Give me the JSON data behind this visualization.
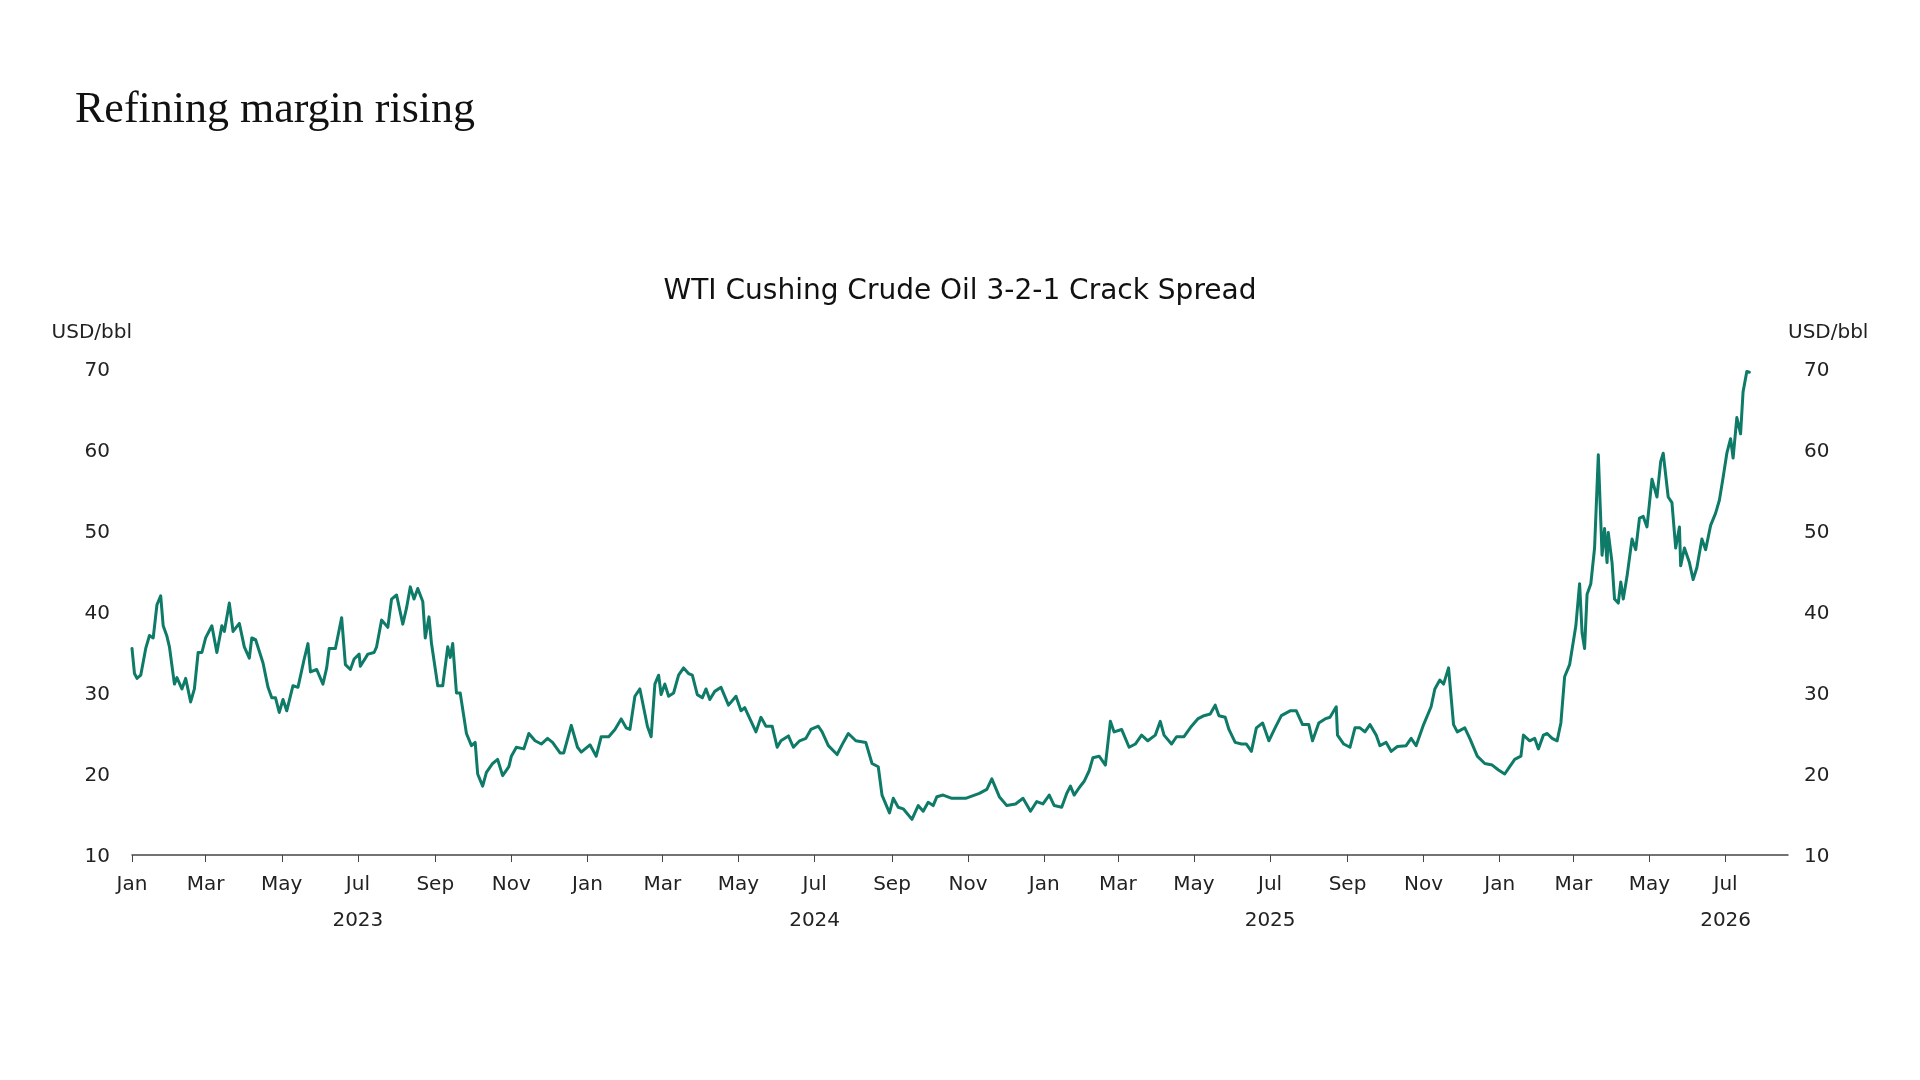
{
  "chart_data": {
    "type": "line",
    "title": "Refining margin rising",
    "subtitle": "WTI Cushing Crude Oil 3-2-1 Crack Spread",
    "ylabel": "USD/bbl",
    "y2label": "USD/bbl",
    "xlim": [
      "2023-01-01",
      "2026-08-20"
    ],
    "xticks": [
      {
        "value": "2023-01-01",
        "label": "Jan"
      },
      {
        "value": "2023-03-01",
        "label": "Mar"
      },
      {
        "value": "2023-05-01",
        "label": "May"
      },
      {
        "value": "2023-07-01",
        "label": "Jul\n2023"
      },
      {
        "value": "2023-09-01",
        "label": "Sep"
      },
      {
        "value": "2023-11-01",
        "label": "Nov"
      },
      {
        "value": "2024-01-01",
        "label": "Jan"
      },
      {
        "value": "2024-03-01",
        "label": "Mar"
      },
      {
        "value": "2024-05-01",
        "label": "May"
      },
      {
        "value": "2024-07-01",
        "label": "Jul\n2024"
      },
      {
        "value": "2024-09-01",
        "label": "Sep"
      },
      {
        "value": "2024-11-01",
        "label": "Nov"
      },
      {
        "value": "2025-01-01",
        "label": "Jan"
      },
      {
        "value": "2025-03-01",
        "label": "Mar"
      },
      {
        "value": "2025-05-01",
        "label": "May"
      },
      {
        "value": "2025-07-01",
        "label": "Jul\n2025"
      },
      {
        "value": "2025-09-01",
        "label": "Sep"
      },
      {
        "value": "2025-11-01",
        "label": "Nov"
      },
      {
        "value": "2026-01-01",
        "label": "Jan"
      },
      {
        "value": "2026-03-01",
        "label": "Mar"
      },
      {
        "value": "2026-05-01",
        "label": "May"
      },
      {
        "value": "2026-07-01",
        "label": "Jul\n2026"
      }
    ],
    "ylim": [
      10,
      70
    ],
    "yticks": [
      10,
      20,
      30,
      40,
      50,
      60,
      70
    ],
    "y2lim": [
      10,
      70
    ],
    "y2ticks": [
      10,
      20,
      30,
      40,
      50,
      60,
      70
    ],
    "grid": false,
    "marker": "none",
    "line_style": "solid",
    "x": [
      "2023-01-01",
      "2023-01-03",
      "2023-01-05",
      "2023-01-08",
      "2023-01-12",
      "2023-01-15",
      "2023-01-18",
      "2023-01-21",
      "2023-01-24",
      "2023-01-26",
      "2023-01-29",
      "2023-01-31",
      "2023-02-04",
      "2023-02-06",
      "2023-02-10",
      "2023-02-13",
      "2023-02-17",
      "2023-02-20",
      "2023-02-23",
      "2023-02-26",
      "2023-03-01",
      "2023-03-06",
      "2023-03-10",
      "2023-03-14",
      "2023-03-16",
      "2023-03-20",
      "2023-03-23",
      "2023-03-28",
      "2023-04-01",
      "2023-04-05",
      "2023-04-07",
      "2023-04-10",
      "2023-04-16",
      "2023-04-20",
      "2023-04-23",
      "2023-04-26",
      "2023-04-29",
      "2023-05-02",
      "2023-05-05",
      "2023-05-10",
      "2023-05-14",
      "2023-05-19",
      "2023-05-22",
      "2023-05-24",
      "2023-05-29",
      "2023-06-03",
      "2023-06-06",
      "2023-06-08",
      "2023-06-13",
      "2023-06-18",
      "2023-06-21",
      "2023-06-25",
      "2023-06-28",
      "2023-07-02",
      "2023-07-03",
      "2023-07-09",
      "2023-07-14",
      "2023-07-16",
      "2023-07-20",
      "2023-07-25",
      "2023-07-28",
      "2023-08-01",
      "2023-08-06",
      "2023-08-09",
      "2023-08-12",
      "2023-08-15",
      "2023-08-18",
      "2023-08-22",
      "2023-08-24",
      "2023-08-27",
      "2023-08-29",
      "2023-09-03",
      "2023-09-07",
      "2023-09-11",
      "2023-09-13",
      "2023-09-15",
      "2023-09-18",
      "2023-09-21",
      "2023-09-26",
      "2023-09-30",
      "2023-10-03",
      "2023-10-05",
      "2023-10-09",
      "2023-10-12",
      "2023-10-17",
      "2023-10-21",
      "2023-10-25",
      "2023-10-30",
      "2023-11-01",
      "2023-11-05",
      "2023-11-11",
      "2023-11-15",
      "2023-11-20",
      "2023-11-25",
      "2023-11-30",
      "2023-12-04",
      "2023-12-10",
      "2023-12-13",
      "2023-12-19",
      "2023-12-24",
      "2023-12-27",
      "2024-01-03",
      "2024-01-08",
      "2024-01-12",
      "2024-01-18",
      "2024-01-23",
      "2024-01-28",
      "2024-02-01",
      "2024-02-04",
      "2024-02-08",
      "2024-02-12",
      "2024-02-18",
      "2024-02-21",
      "2024-02-24",
      "2024-02-27",
      "2024-02-29",
      "2024-03-03",
      "2024-03-06",
      "2024-03-10",
      "2024-03-14",
      "2024-03-18",
      "2024-03-22",
      "2024-03-25",
      "2024-03-29",
      "2024-04-02",
      "2024-04-05",
      "2024-04-08",
      "2024-04-12",
      "2024-04-17",
      "2024-04-23",
      "2024-04-29",
      "2024-05-03",
      "2024-05-06",
      "2024-05-15",
      "2024-05-19",
      "2024-05-23",
      "2024-05-28",
      "2024-06-01",
      "2024-06-04",
      "2024-06-10",
      "2024-06-14",
      "2024-06-19",
      "2024-06-24",
      "2024-06-28",
      "2024-07-04",
      "2024-07-07",
      "2024-07-12",
      "2024-07-19",
      "2024-07-24",
      "2024-07-28",
      "2024-08-03",
      "2024-08-11",
      "2024-08-16",
      "2024-08-21",
      "2024-08-24",
      "2024-08-30",
      "2024-09-02",
      "2024-09-06",
      "2024-09-10",
      "2024-09-17",
      "2024-09-22",
      "2024-09-26",
      "2024-09-30",
      "2024-10-04",
      "2024-10-07",
      "2024-10-12",
      "2024-10-19",
      "2024-10-30",
      "2024-11-10",
      "2024-11-16",
      "2024-11-20",
      "2024-11-26",
      "2024-12-02",
      "2024-12-09",
      "2024-12-15",
      "2024-12-21",
      "2024-12-26",
      "2024-12-31",
      "2025-01-05",
      "2025-01-09",
      "2025-01-15",
      "2025-01-19",
      "2025-01-22",
      "2025-01-25",
      "2025-01-29",
      "2025-02-02",
      "2025-02-06",
      "2025-02-09",
      "2025-02-14",
      "2025-02-19",
      "2025-02-23",
      "2025-02-26",
      "2025-03-04",
      "2025-03-10",
      "2025-03-15",
      "2025-03-20",
      "2025-03-25",
      "2025-03-31",
      "2025-04-04",
      "2025-04-07",
      "2025-04-13",
      "2025-04-17",
      "2025-04-23",
      "2025-04-29",
      "2025-05-04",
      "2025-05-09",
      "2025-05-14",
      "2025-05-18",
      "2025-05-21",
      "2025-05-26",
      "2025-05-29",
      "2025-06-03",
      "2025-06-08",
      "2025-06-12",
      "2025-06-16",
      "2025-06-20",
      "2025-06-25",
      "2025-06-30",
      "2025-07-05",
      "2025-07-10",
      "2025-07-17",
      "2025-07-22",
      "2025-07-27",
      "2025-08-01",
      "2025-08-04",
      "2025-08-09",
      "2025-08-14",
      "2025-08-18",
      "2025-08-23",
      "2025-08-24",
      "2025-08-29",
      "2025-09-03",
      "2025-09-07",
      "2025-09-11",
      "2025-09-15",
      "2025-09-19",
      "2025-09-24",
      "2025-09-27",
      "2025-10-02",
      "2025-10-06",
      "2025-10-11",
      "2025-10-18",
      "2025-10-22",
      "2025-10-26",
      "2025-11-01",
      "2025-11-07",
      "2025-11-10",
      "2025-11-14",
      "2025-11-17",
      "2025-11-21",
      "2025-11-25",
      "2025-11-28",
      "2025-12-04",
      "2025-12-08",
      "2025-12-14",
      "2025-12-20",
      "2025-12-26",
      "2025-12-31",
      "2026-01-05",
      "2026-01-09",
      "2026-01-13",
      "2026-01-18",
      "2026-01-20",
      "2026-01-25",
      "2026-01-29",
      "2026-02-01",
      "2026-02-05",
      "2026-02-08",
      "2026-02-12",
      "2026-02-16",
      "2026-02-19",
      "2026-02-22",
      "2026-02-26",
      "2026-03-03",
      "2026-03-06",
      "2026-03-08",
      "2026-03-10",
      "2026-03-12",
      "2026-03-15",
      "2026-03-18",
      "2026-03-21",
      "2026-03-24",
      "2026-03-26",
      "2026-03-28",
      "2026-03-29",
      "2026-04-01",
      "2026-04-03",
      "2026-04-06",
      "2026-04-08",
      "2026-04-10",
      "2026-04-13",
      "2026-04-17",
      "2026-04-20",
      "2026-04-23",
      "2026-04-26",
      "2026-04-29",
      "2026-05-03",
      "2026-05-07",
      "2026-05-10",
      "2026-05-12",
      "2026-05-16",
      "2026-05-19",
      "2026-05-22",
      "2026-05-25",
      "2026-05-26",
      "2026-05-29",
      "2026-06-02",
      "2026-06-05",
      "2026-06-08",
      "2026-06-12",
      "2026-06-15",
      "2026-06-19",
      "2026-06-23",
      "2026-06-26",
      "2026-06-29",
      "2026-07-02",
      "2026-07-05",
      "2026-07-07",
      "2026-07-10",
      "2026-07-13",
      "2026-07-15",
      "2026-07-18",
      "2026-07-20"
    ],
    "series": [
      {
        "color": "#0e7a68",
        "values": [
          35.5,
          32.4,
          31.8,
          32.2,
          35.5,
          37.1,
          36.8,
          40.9,
          42.0,
          38.3,
          37.0,
          35.7,
          31.1,
          31.9,
          30.5,
          31.8,
          28.9,
          30.5,
          35.0,
          35.0,
          36.8,
          38.3,
          35.0,
          38.3,
          37.6,
          41.1,
          37.6,
          38.6,
          35.7,
          34.3,
          36.8,
          36.6,
          33.7,
          30.7,
          29.4,
          29.4,
          27.6,
          29.2,
          27.8,
          30.9,
          30.7,
          34.2,
          36.1,
          32.6,
          32.9,
          31.1,
          33.1,
          35.5,
          35.5,
          39.3,
          33.5,
          32.9,
          34.2,
          34.8,
          33.3,
          34.8,
          35.0,
          35.7,
          39.0,
          38.1,
          41.6,
          42.1,
          38.5,
          40.5,
          43.1,
          41.6,
          42.9,
          41.3,
          36.8,
          39.4,
          36.1,
          30.9,
          30.9,
          35.7,
          34.4,
          36.1,
          30.0,
          30.0,
          25.0,
          23.5,
          23.9,
          20.0,
          18.5,
          20.2,
          21.3,
          21.8,
          19.8,
          20.9,
          22.2,
          23.3,
          23.1,
          25.0,
          24.1,
          23.7,
          24.4,
          23.9,
          22.6,
          22.6,
          26.0,
          23.3,
          22.7,
          23.6,
          22.2,
          24.6,
          24.6,
          25.5,
          26.8,
          25.7,
          25.5,
          29.6,
          30.5,
          25.9,
          24.6,
          31.1,
          32.2,
          29.8,
          31.1,
          29.6,
          30.0,
          32.2,
          33.1,
          32.4,
          32.2,
          29.8,
          29.4,
          30.5,
          29.2,
          30.2,
          30.7,
          28.5,
          29.6,
          27.8,
          28.2,
          25.2,
          27.0,
          25.9,
          25.9,
          23.3,
          24.1,
          24.7,
          23.3,
          24.1,
          24.4,
          25.5,
          25.9,
          25.2,
          23.5,
          22.4,
          23.9,
          25.0,
          24.1,
          23.9,
          21.3,
          20.9,
          17.4,
          15.2,
          17.0,
          15.9,
          15.7,
          14.4,
          16.1,
          15.4,
          16.5,
          16.1,
          17.2,
          17.4,
          17.0,
          17.0,
          17.6,
          18.1,
          19.4,
          17.2,
          16.1,
          16.3,
          17.0,
          15.4,
          16.6,
          16.3,
          17.4,
          16.1,
          15.9,
          17.6,
          18.5,
          17.4,
          18.3,
          19.1,
          20.4,
          22.0,
          22.2,
          21.1,
          26.5,
          25.2,
          25.5,
          23.3,
          23.7,
          24.8,
          24.1,
          24.8,
          26.5,
          24.8,
          23.7,
          24.6,
          24.6,
          25.9,
          26.8,
          27.2,
          27.4,
          28.5,
          27.2,
          27.0,
          25.5,
          23.9,
          23.7,
          23.7,
          22.8,
          25.7,
          26.3,
          24.1,
          25.7,
          27.2,
          27.8,
          27.8,
          26.1,
          26.1,
          24.1,
          26.3,
          26.8,
          27.0,
          28.3,
          24.8,
          23.7,
          23.3,
          25.7,
          25.7,
          25.2,
          26.1,
          24.8,
          23.5,
          23.9,
          22.8,
          23.4,
          23.5,
          24.4,
          23.5,
          26.1,
          28.3,
          30.5,
          31.6,
          31.1,
          33.1,
          26.1,
          25.2,
          25.7,
          24.4,
          22.2,
          21.3,
          21.1,
          20.5,
          20.0,
          20.9,
          21.8,
          22.2,
          24.8,
          24.1,
          24.4,
          23.1,
          24.8,
          25.0,
          24.4,
          24.1,
          26.3,
          32.0,
          33.5,
          38.3,
          43.5,
          37.4,
          35.5,
          42.2,
          43.5,
          47.9,
          59.4,
          47.0,
          50.3,
          46.1,
          49.8,
          46.1,
          41.6,
          41.1,
          43.7,
          41.6,
          44.4,
          49.0,
          47.7,
          51.6,
          51.8,
          50.5,
          56.4,
          54.2,
          58.6,
          59.6,
          54.2,
          53.5,
          47.9,
          50.5,
          45.7,
          47.9,
          46.1,
          44.0,
          45.5,
          49.0,
          47.7,
          50.7,
          52.2,
          53.8,
          56.6,
          59.6,
          61.4,
          59.0,
          64.0,
          62.0,
          67.2,
          69.7,
          69.6
        ]
      }
    ]
  }
}
